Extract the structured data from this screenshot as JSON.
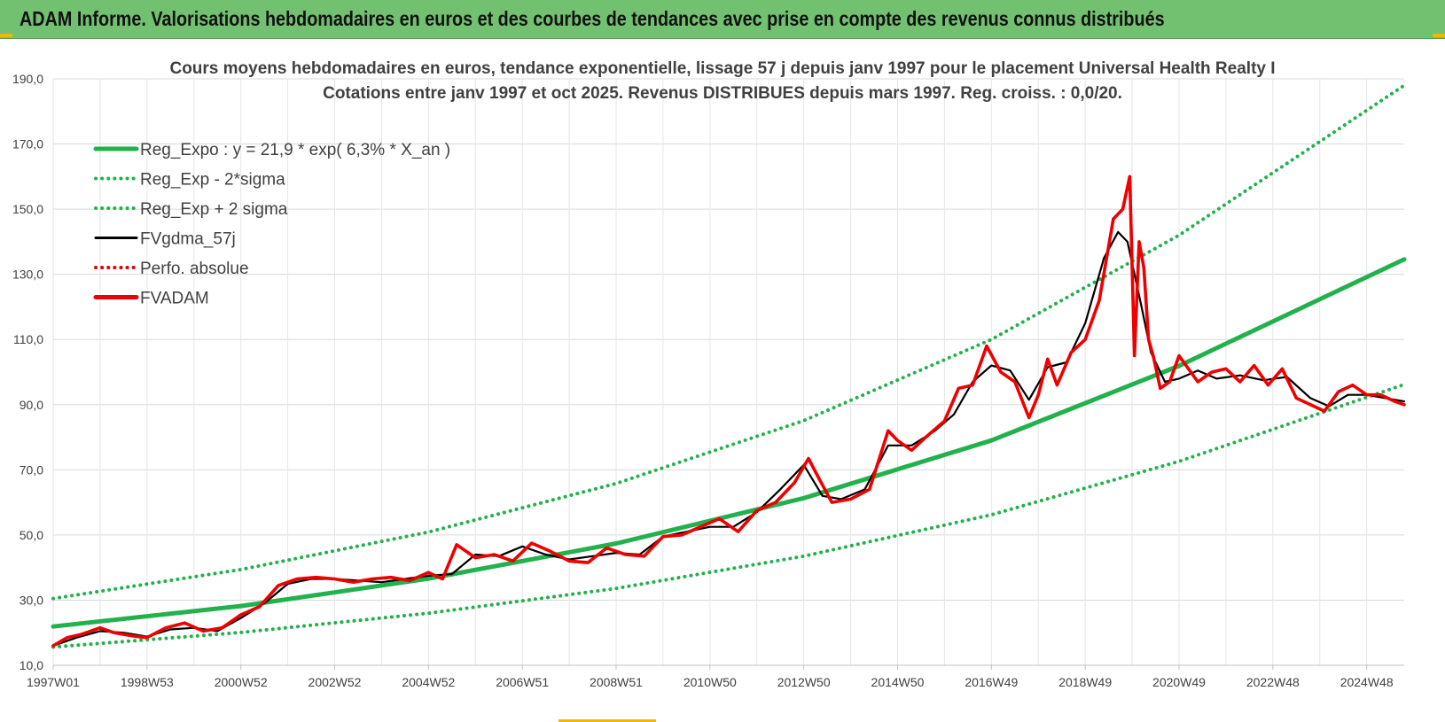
{
  "banner": {
    "title": "ADAM Informe. Valorisations hebdomadaires en euros et des courbes de tendances avec prise en compte des revenus connus distribués"
  },
  "chart_data": {
    "type": "line",
    "title": "Cours moyens hebdomadaires en euros, tendance exponentielle, lissage 57 j depuis janv 1997 pour le placement Universal Health Realty I",
    "subtitle": "Cotations entre janv 1997 et oct 2025. Revenus DISTRIBUES depuis mars 1997. Reg. croiss. : 0,0/20.",
    "xlabel": "",
    "ylabel": "",
    "ylim": [
      10,
      190
    ],
    "xlim": [
      1997.0,
      2025.8
    ],
    "y_ticks": [
      "10,0",
      "30,0",
      "50,0",
      "70,0",
      "90,0",
      "110,0",
      "130,0",
      "150,0",
      "170,0",
      "190,0"
    ],
    "x_ticks": [
      {
        "label": "1997W01",
        "x": 1997.0
      },
      {
        "label": "1998W53",
        "x": 1999.0
      },
      {
        "label": "2000W52",
        "x": 2001.0
      },
      {
        "label": "2002W52",
        "x": 2003.0
      },
      {
        "label": "2004W52",
        "x": 2005.0
      },
      {
        "label": "2006W51",
        "x": 2007.0
      },
      {
        "label": "2008W51",
        "x": 2009.0
      },
      {
        "label": "2010W50",
        "x": 2011.0
      },
      {
        "label": "2012W50",
        "x": 2013.0
      },
      {
        "label": "2014W50",
        "x": 2015.0
      },
      {
        "label": "2016W49",
        "x": 2017.0
      },
      {
        "label": "2018W49",
        "x": 2019.0
      },
      {
        "label": "2020W49",
        "x": 2021.0
      },
      {
        "label": "2022W48",
        "x": 2023.0
      },
      {
        "label": "2024W48",
        "x": 2025.0
      }
    ],
    "grid": true,
    "legend_position": "top-left",
    "series": [
      {
        "name": "Reg_Expo : y = 21,9 * exp( 6,3% *  X_an )",
        "style": "solid",
        "color": "#22b14c",
        "x": [
          1997.0,
          2001.0,
          2005.0,
          2009.0,
          2013.0,
          2017.0,
          2021.0,
          2025.8
        ],
        "values": [
          21.9,
          28.2,
          36.6,
          47.4,
          61.3,
          79.0,
          101.9,
          134.6
        ]
      },
      {
        "name": "Reg_Exp - 2*sigma",
        "style": "dotted",
        "color": "#22b14c",
        "x": [
          1997.0,
          2001.0,
          2005.0,
          2009.0,
          2013.0,
          2017.0,
          2021.0,
          2025.8
        ],
        "values": [
          15.6,
          20.1,
          26.0,
          33.6,
          43.5,
          56.2,
          72.6,
          96.2
        ]
      },
      {
        "name": "Reg_Exp + 2 sigma",
        "style": "dotted",
        "color": "#22b14c",
        "x": [
          1997.0,
          2001.0,
          2005.0,
          2009.0,
          2013.0,
          2017.0,
          2021.0,
          2025.8
        ],
        "values": [
          30.5,
          39.4,
          50.9,
          65.8,
          85.1,
          110.0,
          142.0,
          188.0
        ]
      },
      {
        "name": "FVgdma_57j",
        "style": "solid",
        "color": "#000000",
        "x": [
          1997.0,
          1997.5,
          1998.0,
          1998.5,
          1999.0,
          1999.5,
          2000.0,
          2000.5,
          2001.0,
          2001.5,
          2002.0,
          2002.5,
          2003.0,
          2003.5,
          2004.0,
          2004.5,
          2005.0,
          2005.5,
          2006.0,
          2006.5,
          2007.0,
          2007.5,
          2008.0,
          2008.5,
          2009.0,
          2009.5,
          2010.0,
          2010.5,
          2011.0,
          2011.5,
          2012.0,
          2012.5,
          2013.0,
          2013.4,
          2013.8,
          2014.3,
          2014.8,
          2015.3,
          2015.8,
          2016.2,
          2016.6,
          2017.0,
          2017.4,
          2017.8,
          2018.2,
          2018.6,
          2019.0,
          2019.4,
          2019.7,
          2019.9,
          2020.2,
          2020.4,
          2020.7,
          2021.0,
          2021.4,
          2021.8,
          2022.3,
          2022.8,
          2023.3,
          2023.8,
          2024.2,
          2024.6,
          2025.0,
          2025.4,
          2025.8
        ],
        "values": [
          16.0,
          18.5,
          20.5,
          20.0,
          18.8,
          21.0,
          21.5,
          20.5,
          24.5,
          29.0,
          35.0,
          36.5,
          36.5,
          36.0,
          35.5,
          36.5,
          37.5,
          38.0,
          44.0,
          43.5,
          46.5,
          44.0,
          42.5,
          43.5,
          44.5,
          44.0,
          49.5,
          51.0,
          52.5,
          52.5,
          57.0,
          64.0,
          71.5,
          62.0,
          61.0,
          64.0,
          77.5,
          77.5,
          82.0,
          87.0,
          97.0,
          102.0,
          100.5,
          91.5,
          101.5,
          103.0,
          115.0,
          135.0,
          143.0,
          140.0,
          120.0,
          106.0,
          97.0,
          98.0,
          100.5,
          98.0,
          99.0,
          97.5,
          98.5,
          92.0,
          89.5,
          93.0,
          93.0,
          92.0,
          91.0
        ]
      },
      {
        "name": "Perfo. absolue",
        "style": "dotted",
        "color": "#e00000",
        "x": [],
        "values": []
      },
      {
        "name": "FVADAM",
        "style": "solid",
        "color": "#ee0000",
        "x": [
          1997.0,
          1997.3,
          1997.6,
          1998.0,
          1998.3,
          1998.7,
          1999.0,
          1999.4,
          1999.8,
          2000.2,
          2000.6,
          2001.0,
          2001.4,
          2001.8,
          2002.2,
          2002.6,
          2003.0,
          2003.4,
          2003.8,
          2004.2,
          2004.6,
          2005.0,
          2005.3,
          2005.6,
          2006.0,
          2006.4,
          2006.8,
          2007.2,
          2007.6,
          2008.0,
          2008.4,
          2008.8,
          2009.2,
          2009.6,
          2010.0,
          2010.4,
          2010.8,
          2011.2,
          2011.6,
          2012.0,
          2012.4,
          2012.8,
          2013.1,
          2013.3,
          2013.6,
          2014.0,
          2014.4,
          2014.8,
          2015.0,
          2015.3,
          2015.6,
          2016.0,
          2016.3,
          2016.6,
          2016.9,
          2017.2,
          2017.5,
          2017.8,
          2018.0,
          2018.2,
          2018.4,
          2018.7,
          2019.0,
          2019.3,
          2019.6,
          2019.8,
          2019.95,
          2020.05,
          2020.15,
          2020.25,
          2020.35,
          2020.45,
          2020.6,
          2020.8,
          2021.0,
          2021.2,
          2021.4,
          2021.7,
          2022.0,
          2022.3,
          2022.6,
          2022.9,
          2023.2,
          2023.5,
          2023.8,
          2024.1,
          2024.4,
          2024.7,
          2025.0,
          2025.3,
          2025.6,
          2025.8
        ],
        "values": [
          16.0,
          18.5,
          19.5,
          21.5,
          20.0,
          19.0,
          18.5,
          21.5,
          23.0,
          20.5,
          21.5,
          25.5,
          28.0,
          34.5,
          36.5,
          37.0,
          36.5,
          35.5,
          36.5,
          37.0,
          36.0,
          38.5,
          36.5,
          47.0,
          43.0,
          44.0,
          42.0,
          47.5,
          45.0,
          42.0,
          41.5,
          46.0,
          44.0,
          43.5,
          49.5,
          50.0,
          52.5,
          55.0,
          51.0,
          57.5,
          60.0,
          66.0,
          73.5,
          68.0,
          60.0,
          61.0,
          64.0,
          82.0,
          79.0,
          76.0,
          80.0,
          85.0,
          95.0,
          96.0,
          108.0,
          100.0,
          97.0,
          86.0,
          93.0,
          104.0,
          96.0,
          106.0,
          110.0,
          122.0,
          147.0,
          150.0,
          160.0,
          105.0,
          140.0,
          132.0,
          110.0,
          105.0,
          95.0,
          97.0,
          105.0,
          101.0,
          97.0,
          100.0,
          101.0,
          97.0,
          102.0,
          96.0,
          101.0,
          92.0,
          90.0,
          88.0,
          94.0,
          96.0,
          93.0,
          93.0,
          91.0,
          90.0
        ]
      }
    ]
  }
}
